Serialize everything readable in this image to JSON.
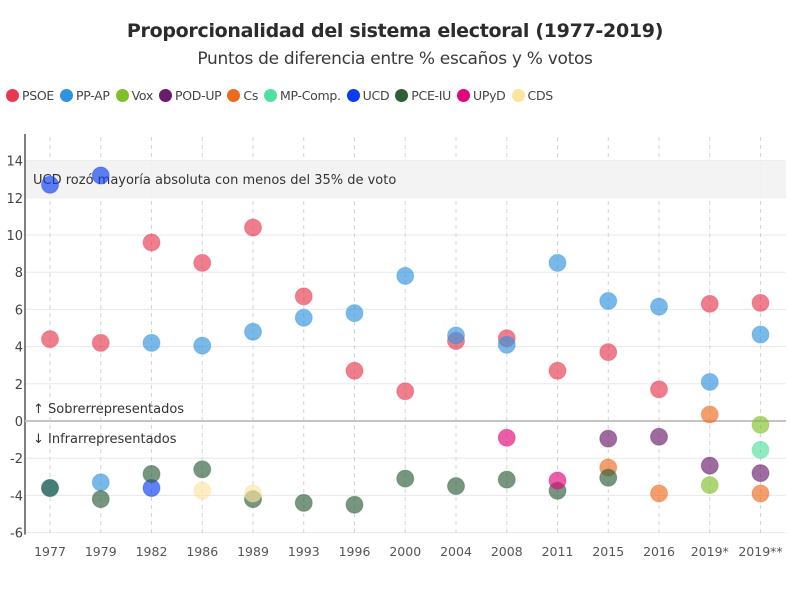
{
  "header": {
    "title": "Proporcionalidad del sistema electoral (1977-2019)",
    "subtitle": "Puntos de diferencia entre % escaños y % votos"
  },
  "chart_data": {
    "type": "scatter",
    "title": "Proporcionalidad del sistema electoral (1977-2019)",
    "subtitle": "Puntos de diferencia entre % escaños y % votos",
    "xlabel": "",
    "ylabel": "",
    "categories": [
      "1977",
      "1979",
      "1982",
      "1986",
      "1989",
      "1993",
      "1996",
      "2000",
      "2004",
      "2008",
      "2011",
      "2015",
      "2016",
      "2019*",
      "2019**"
    ],
    "ylim": [
      -6,
      15
    ],
    "yticks": [
      14,
      12,
      10,
      8,
      6,
      4,
      2,
      0,
      -2,
      -4,
      -6
    ],
    "grid": true,
    "legend_position": "top-left",
    "annotations": {
      "band": {
        "from": 12,
        "to": 14,
        "label": "UCD rozó mayoría absoluta con menos del 35% de voto"
      },
      "above_zero": "↑ Sobrerrepresentados",
      "below_zero": "↓ Infrarrepresentados"
    },
    "series": [
      {
        "name": "PSOE",
        "color": "#e63950",
        "points": [
          [
            "1977",
            4.4
          ],
          [
            "1979",
            4.2
          ],
          [
            "1982",
            9.6
          ],
          [
            "1986",
            8.5
          ],
          [
            "1989",
            10.4
          ],
          [
            "1993",
            6.7
          ],
          [
            "1996",
            2.7
          ],
          [
            "2000",
            1.6
          ],
          [
            "2004",
            4.3
          ],
          [
            "2008",
            4.45
          ],
          [
            "2011",
            2.7
          ],
          [
            "2015",
            3.7
          ],
          [
            "2016",
            1.7
          ],
          [
            "2019*",
            6.3
          ],
          [
            "2019**",
            6.35
          ]
        ]
      },
      {
        "name": "PP-AP",
        "color": "#2f93dd",
        "points": [
          [
            "1977",
            -3.6
          ],
          [
            "1979",
            -3.3
          ],
          [
            "1982",
            4.2
          ],
          [
            "1986",
            4.05
          ],
          [
            "1989",
            4.8
          ],
          [
            "1993",
            5.55
          ],
          [
            "1996",
            5.8
          ],
          [
            "2000",
            7.8
          ],
          [
            "2004",
            4.6
          ],
          [
            "2008",
            4.1
          ],
          [
            "2011",
            8.5
          ],
          [
            "2015",
            6.45
          ],
          [
            "2016",
            6.15
          ],
          [
            "2019*",
            2.1
          ],
          [
            "2019**",
            4.65
          ]
        ]
      },
      {
        "name": "Vox",
        "color": "#7fc02a",
        "points": [
          [
            "2019*",
            -3.45
          ],
          [
            "2019**",
            -0.2
          ]
        ]
      },
      {
        "name": "POD-UP",
        "color": "#6a1b6a",
        "points": [
          [
            "2015",
            -0.95
          ],
          [
            "2016",
            -0.85
          ],
          [
            "2019*",
            -2.4
          ],
          [
            "2019**",
            -2.8
          ]
        ]
      },
      {
        "name": "Cs",
        "color": "#ec6b1e",
        "points": [
          [
            "2015",
            -2.5
          ],
          [
            "2016",
            -3.9
          ],
          [
            "2019*",
            0.35
          ],
          [
            "2019**",
            -3.9
          ]
        ]
      },
      {
        "name": "MP-Comp.",
        "color": "#4fe0a0",
        "points": [
          [
            "2019**",
            -1.55
          ]
        ]
      },
      {
        "name": "UCD",
        "color": "#0a3cf0",
        "points": [
          [
            "1977",
            12.7
          ],
          [
            "1979",
            13.2
          ],
          [
            "1982",
            -3.6
          ]
        ]
      },
      {
        "name": "PCE-IU",
        "color": "#2e5e3a",
        "points": [
          [
            "1977",
            -3.6
          ],
          [
            "1979",
            -4.2
          ],
          [
            "1982",
            -2.85
          ],
          [
            "1986",
            -2.6
          ],
          [
            "1989",
            -4.2
          ],
          [
            "1993",
            -4.4
          ],
          [
            "1996",
            -4.5
          ],
          [
            "2000",
            -3.1
          ],
          [
            "2004",
            -3.5
          ],
          [
            "2008",
            -3.15
          ],
          [
            "2011",
            -3.75
          ],
          [
            "2015",
            -3.05
          ]
        ]
      },
      {
        "name": "UPyD",
        "color": "#e0067a",
        "points": [
          [
            "2008",
            -0.9
          ],
          [
            "2011",
            -3.2
          ]
        ]
      },
      {
        "name": "CDS",
        "color": "#fde3a0",
        "points": [
          [
            "1986",
            -3.75
          ],
          [
            "1989",
            -3.9
          ]
        ]
      }
    ]
  }
}
